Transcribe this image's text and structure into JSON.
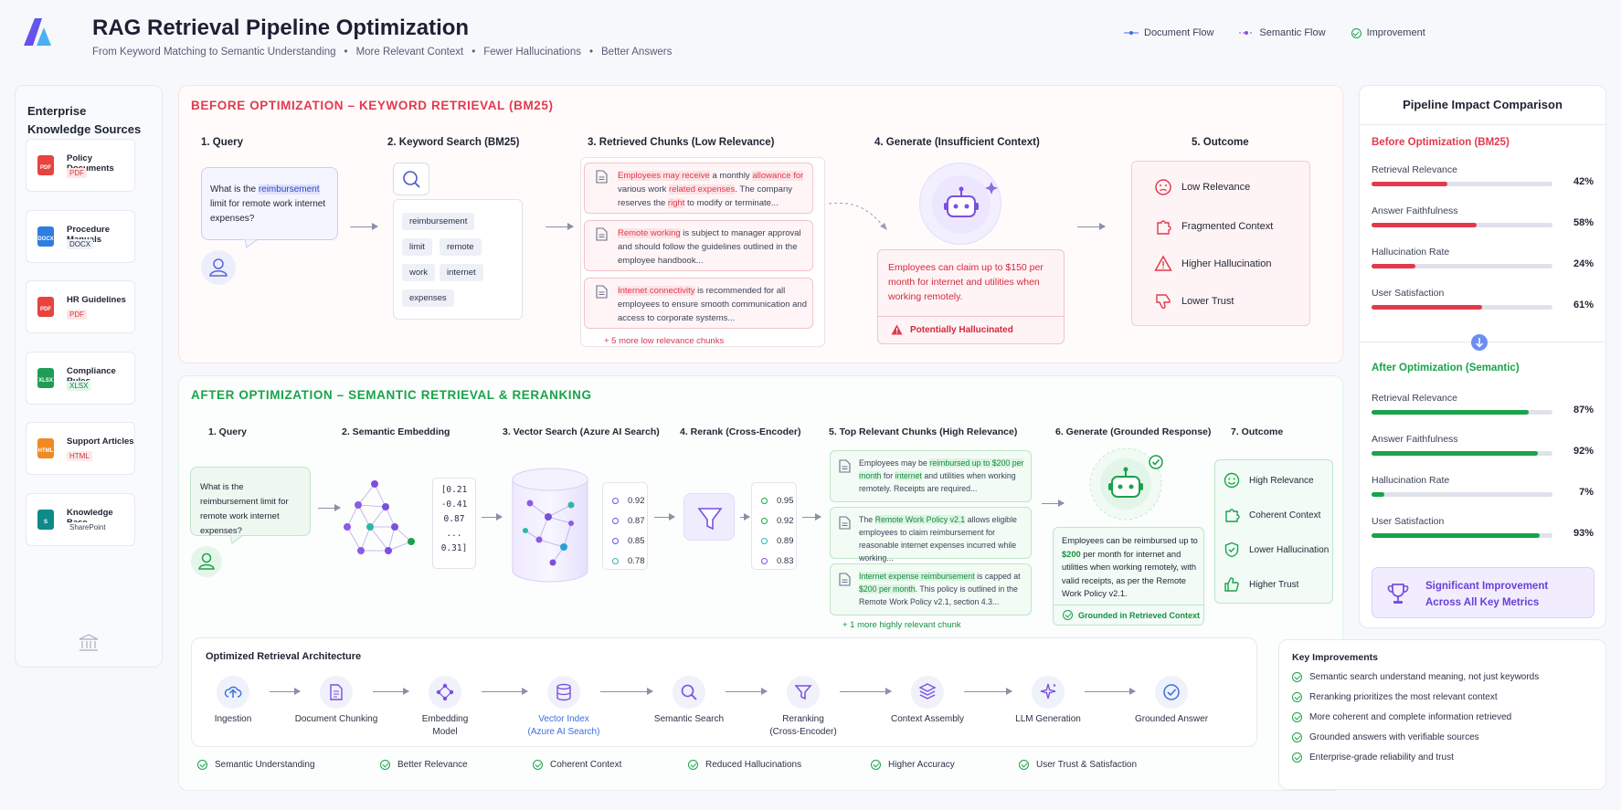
{
  "header": {
    "title": "RAG Retrieval Pipeline Optimization",
    "subtitle_parts": [
      "From Keyword Matching to Semantic Understanding",
      "More Relevant Context",
      "Fewer Hallucinations",
      "Better Answers"
    ],
    "bullet": "•",
    "legend": [
      {
        "label": "Document Flow",
        "color": "#3b6fe0"
      },
      {
        "label": "Semantic Flow",
        "color": "#8b4fe0"
      },
      {
        "label": "Improvement",
        "color": "#19a34a"
      }
    ]
  },
  "sources": {
    "title_line1": "Enterprise",
    "title_line2": "Knowledge Sources",
    "items": [
      {
        "name": "Policy Documents",
        "type": "PDF",
        "icon_text": "PDF",
        "color": "#e8433f",
        "tag_bg": "#fde6e6",
        "tag_color": "#d23b3b"
      },
      {
        "name": "Procedure Manuals",
        "type": "DOCX",
        "icon_text": "DOCX",
        "color": "#2e7de0",
        "tag_bg": "#eef1f7",
        "tag_color": "#2c3248"
      },
      {
        "name": "HR Guidelines",
        "type": "PDF",
        "icon_text": "PDF",
        "color": "#e8433f",
        "tag_bg": "#fde6e6",
        "tag_color": "#d23b3b"
      },
      {
        "name": "Compliance Rules",
        "type": "XLSX",
        "icon_text": "XLSX",
        "color": "#1f9d55",
        "tag_bg": "#e3f4ea",
        "tag_color": "#1f7a45"
      },
      {
        "name": "Support Articles",
        "type": "HTML",
        "icon_text": "HTML",
        "color": "#f08a24",
        "tag_bg": "#fde9e9",
        "tag_color": "#c93838"
      },
      {
        "name": "Knowledge Base",
        "type": "SharePoint",
        "icon_text": "S",
        "color": "#0f8a8a",
        "tag_bg": "#ffffff",
        "tag_color": "#3b4258"
      }
    ]
  },
  "before": {
    "title": "BEFORE OPTIMIZATION – KEYWORD RETRIEVAL (BM25)",
    "steps": [
      "1. Query",
      "2. Keyword Search (BM25)",
      "3. Retrieved Chunks (Low Relevance)",
      "4. Generate (Insufficient Context)",
      "5. Outcome"
    ],
    "query": {
      "pre": "What is the ",
      "hl": "reimbursement",
      "post": " limit for remote work internet expenses?"
    },
    "keywords": [
      "reimbursement",
      "limit",
      "remote",
      "work",
      "internet",
      "expenses"
    ],
    "chunks": [
      {
        "a": "Employees may receive",
        "b": " a monthly ",
        "c": "allowance for",
        "d": " various work ",
        "e": "related expenses",
        "f": ". The company reserves the ",
        "g": "right",
        "h": " to modify or terminate..."
      },
      {
        "a": "Remote working",
        "b": " is subject to manager approval and should follow the guidelines outlined in the employee handbook..."
      },
      {
        "a": "Internet connectivity",
        "b": " is recommended for all employees to ensure smooth communication and access to corporate systems..."
      }
    ],
    "more_chunks": "+ 5 more low relevance chunks",
    "answer": "Employees can claim up to $150 per month for internet and utilities when working remotely.",
    "warning": "Potentially Hallucinated",
    "outcomes": [
      "Low Relevance",
      "Fragmented Context",
      "Higher Hallucination",
      "Lower Trust"
    ]
  },
  "after": {
    "title": "AFTER OPTIMIZATION – SEMANTIC RETRIEVAL & RERANKING",
    "steps": [
      "1. Query",
      "2. Semantic Embedding",
      "3. Vector Search (Azure AI Search)",
      "4. Rerank (Cross-Encoder)",
      "5. Top Relevant Chunks (High Relevance)",
      "6. Generate (Grounded Response)",
      "7. Outcome"
    ],
    "query": "What is the reimbursement limit for remote work internet expenses?",
    "vector": [
      "[0.21",
      "-0.41",
      "0.87",
      "...",
      "0.31]"
    ],
    "search_scores": [
      "0.92",
      "0.87",
      "0.85",
      "0.78"
    ],
    "rerank_scores": [
      "0.95",
      "0.92",
      "0.89",
      "0.83"
    ],
    "chunks": [
      {
        "a": "Employees may be ",
        "b": "reimbursed up to $200 per month",
        "c": " for ",
        "d": "internet",
        "e": " and utilities when working remotely. Receipts are required..."
      },
      {
        "a": "The ",
        "b": "Remote Work Policy v2.1",
        "c": " allows eligible employees to claim reimbursement for reasonable internet expenses incurred while working..."
      },
      {
        "a": "Internet expense reimbursement",
        "b": " is capped at ",
        "c": "$200 per month",
        "d": ". This policy is outlined in the Remote Work Policy v2.1, section 4.3..."
      }
    ],
    "more_chunks": "+ 1 more highly relevant chunk",
    "answer": {
      "a": "Employees can be reimbursed up to ",
      "b": "$200",
      "c": " per month for internet and utilities when working remotely, with valid receipts, as per the Remote Work Policy v2.1."
    },
    "grounded": "Grounded in Retrieved Context",
    "outcomes": [
      "High Relevance",
      "Coherent Context",
      "Lower Hallucination",
      "Higher Trust"
    ]
  },
  "architecture": {
    "title": "Optimized Retrieval Architecture",
    "steps": [
      {
        "l1": "Ingestion",
        "l2": ""
      },
      {
        "l1": "Document Chunking",
        "l2": ""
      },
      {
        "l1": "Embedding",
        "l2": "Model"
      },
      {
        "l1": "Vector Index",
        "l2": "(Azure AI Search)"
      },
      {
        "l1": "Semantic Search",
        "l2": ""
      },
      {
        "l1": "Reranking",
        "l2": "(Cross-Encoder)"
      },
      {
        "l1": "Context Assembly",
        "l2": ""
      },
      {
        "l1": "LLM Generation",
        "l2": ""
      },
      {
        "l1": "Grounded Answer",
        "l2": ""
      }
    ],
    "benefits": [
      "Semantic Understanding",
      "Better Relevance",
      "Coherent Context",
      "Reduced Hallucinations",
      "Higher Accuracy",
      "User Trust & Satisfaction"
    ]
  },
  "comparison": {
    "title": "Pipeline Impact Comparison",
    "before_title": "Before Optimization (BM25)",
    "after_title": "After Optimization (Semantic)",
    "before": [
      {
        "label": "Retrieval Relevance",
        "value": 42,
        "text": "42%"
      },
      {
        "label": "Answer Faithfulness",
        "value": 58,
        "text": "58%"
      },
      {
        "label": "Hallucination Rate",
        "value": 24,
        "text": "24%"
      },
      {
        "label": "User Satisfaction",
        "value": 61,
        "text": "61%"
      }
    ],
    "after": [
      {
        "label": "Retrieval Relevance",
        "value": 87,
        "text": "87%"
      },
      {
        "label": "Answer Faithfulness",
        "value": 92,
        "text": "92%"
      },
      {
        "label": "Hallucination Rate",
        "value": 7,
        "text": "7%"
      },
      {
        "label": "User Satisfaction",
        "value": 93,
        "text": "93%"
      }
    ],
    "banner_line1": "Significant Improvement",
    "banner_line2": "Across All Key Metrics"
  },
  "key_improvements": {
    "title": "Key Improvements",
    "items": [
      "Semantic search understand meaning, not just keywords",
      "Reranking prioritizes the most relevant context",
      "More coherent and complete information retrieved",
      "Grounded answers with verifiable sources",
      "Enterprise-grade reliability and trust"
    ]
  },
  "colors": {
    "red": "#e23a4d",
    "green": "#19a34a",
    "purple": "#7b4fe0",
    "blue": "#3b6fe0"
  }
}
